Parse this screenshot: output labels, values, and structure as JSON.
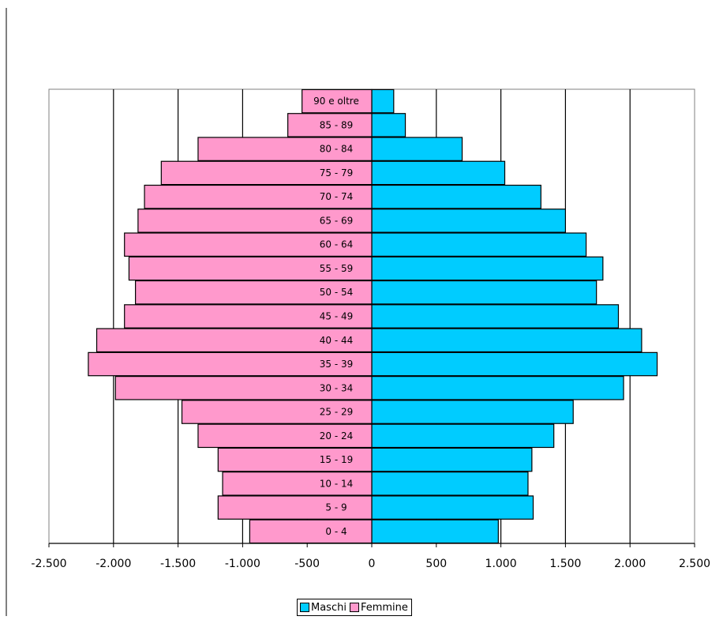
{
  "chart_data": {
    "type": "bar",
    "orientation": "horizontal",
    "layout": "population-pyramid",
    "title": "",
    "xlabel": "",
    "ylabel": "",
    "xlim": [
      -2500,
      2500
    ],
    "xticks": [
      -2500,
      -2000,
      -1500,
      -1000,
      -500,
      0,
      500,
      1000,
      1500,
      2000,
      2500
    ],
    "xtick_labels": [
      "-2.500",
      "-2.000",
      "-1.500",
      "-1.000",
      "-500",
      "0",
      "500",
      "1.000",
      "1.500",
      "2.000",
      "2.500"
    ],
    "grid": "vertical",
    "legend_position": "bottom",
    "categories": [
      "0 - 4",
      "5 - 9",
      "10 - 14",
      "15 - 19",
      "20 - 24",
      "25 - 29",
      "30 - 34",
      "35 - 39",
      "40 - 44",
      "45 - 49",
      "50 - 54",
      "55 - 59",
      "60 - 64",
      "65 - 69",
      "70 - 74",
      "75 - 79",
      "80 - 84",
      "85 - 89",
      "90 e oltre"
    ],
    "series": [
      {
        "name": "Maschi",
        "color": "#00ccff",
        "values": [
          980,
          1250,
          1210,
          1240,
          1410,
          1560,
          1950,
          2210,
          2090,
          1910,
          1740,
          1790,
          1660,
          1500,
          1310,
          1030,
          700,
          260,
          170
        ]
      },
      {
        "name": "Femmine",
        "color": "#ff99cc",
        "values": [
          -945,
          -1190,
          -1155,
          -1190,
          -1345,
          -1470,
          -1985,
          -2195,
          -2130,
          -1915,
          -1830,
          -1880,
          -1915,
          -1810,
          -1760,
          -1630,
          -1345,
          -650,
          -540
        ]
      }
    ]
  }
}
